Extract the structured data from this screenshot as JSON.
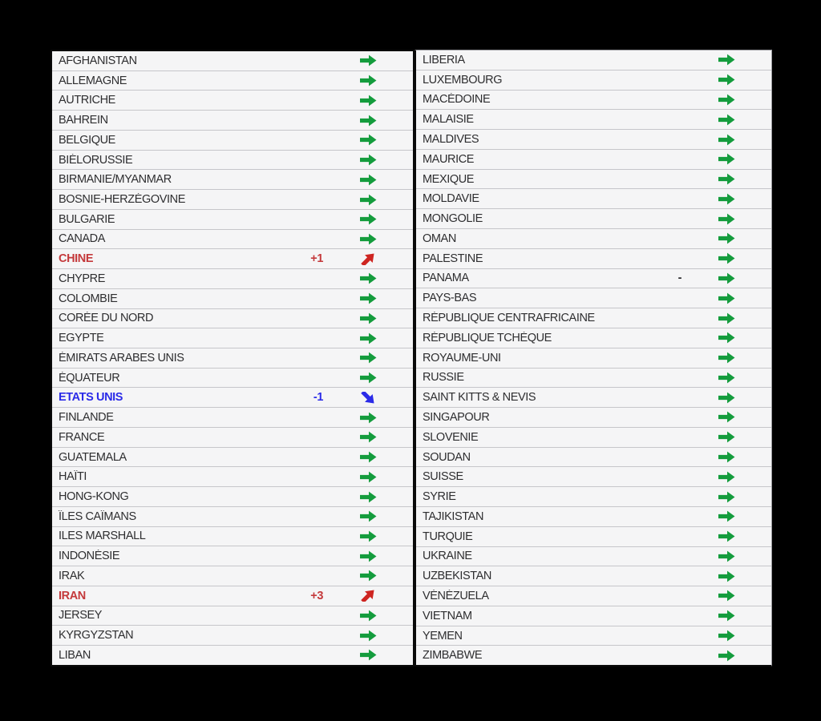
{
  "chart_data": {
    "type": "table",
    "description": "Two-column country list with trend arrows",
    "trend_values": [
      "stable",
      "up",
      "down"
    ],
    "columns": [
      {
        "rows": [
          {
            "country": "AFGHANISTAN",
            "delta": "",
            "trend": "stable"
          },
          {
            "country": "ALLEMAGNE",
            "delta": "",
            "trend": "stable"
          },
          {
            "country": "AUTRICHE",
            "delta": "",
            "trend": "stable"
          },
          {
            "country": "BAHREIN",
            "delta": "",
            "trend": "stable"
          },
          {
            "country": "BELGIQUE",
            "delta": "",
            "trend": "stable"
          },
          {
            "country": "BIÉLORUSSIE",
            "delta": "",
            "trend": "stable"
          },
          {
            "country": "BIRMANIE/MYANMAR",
            "delta": "",
            "trend": "stable"
          },
          {
            "country": "BOSNIE-HERZÉGOVINE",
            "delta": "",
            "trend": "stable"
          },
          {
            "country": "BULGARIE",
            "delta": "",
            "trend": "stable"
          },
          {
            "country": "CANADA",
            "delta": "",
            "trend": "stable"
          },
          {
            "country": "CHINE",
            "delta": "+1",
            "trend": "up"
          },
          {
            "country": "CHYPRE",
            "delta": "",
            "trend": "stable"
          },
          {
            "country": "COLOMBIE",
            "delta": "",
            "trend": "stable"
          },
          {
            "country": "CORÉE DU NORD",
            "delta": "",
            "trend": "stable"
          },
          {
            "country": "EGYPTE",
            "delta": "",
            "trend": "stable"
          },
          {
            "country": "ÉMIRATS ARABES UNIS",
            "delta": "",
            "trend": "stable"
          },
          {
            "country": "ÉQUATEUR",
            "delta": "",
            "trend": "stable"
          },
          {
            "country": "ETATS UNIS",
            "delta": "-1",
            "trend": "down"
          },
          {
            "country": "FINLANDE",
            "delta": "",
            "trend": "stable"
          },
          {
            "country": "FRANCE",
            "delta": "",
            "trend": "stable"
          },
          {
            "country": "GUATEMALA",
            "delta": "",
            "trend": "stable"
          },
          {
            "country": "HAÏTI",
            "delta": "",
            "trend": "stable"
          },
          {
            "country": "HONG-KONG",
            "delta": "",
            "trend": "stable"
          },
          {
            "country": "ÎLES CAÏMANS",
            "delta": "",
            "trend": "stable"
          },
          {
            "country": "ILES MARSHALL",
            "delta": "",
            "trend": "stable"
          },
          {
            "country": "INDONÉSIE",
            "delta": "",
            "trend": "stable"
          },
          {
            "country": "IRAK",
            "delta": "",
            "trend": "stable"
          },
          {
            "country": "IRAN",
            "delta": "+3",
            "trend": "up"
          },
          {
            "country": "JERSEY",
            "delta": "",
            "trend": "stable"
          },
          {
            "country": "KYRGYZSTAN",
            "delta": "",
            "trend": "stable"
          },
          {
            "country": "LIBAN",
            "delta": "",
            "trend": "stable"
          }
        ]
      },
      {
        "rows": [
          {
            "country": "LIBERIA",
            "delta": "",
            "trend": "stable"
          },
          {
            "country": "LUXEMBOURG",
            "delta": "",
            "trend": "stable"
          },
          {
            "country": "MACÉDOINE",
            "delta": "",
            "trend": "stable"
          },
          {
            "country": "MALAISIE",
            "delta": "",
            "trend": "stable"
          },
          {
            "country": "MALDIVES",
            "delta": "",
            "trend": "stable"
          },
          {
            "country": "MAURICE",
            "delta": "",
            "trend": "stable"
          },
          {
            "country": "MEXIQUE",
            "delta": "",
            "trend": "stable"
          },
          {
            "country": "MOLDAVIE",
            "delta": "",
            "trend": "stable"
          },
          {
            "country": "MONGOLIE",
            "delta": "",
            "trend": "stable"
          },
          {
            "country": "OMAN",
            "delta": "",
            "trend": "stable"
          },
          {
            "country": "PALESTINE",
            "delta": "",
            "trend": "stable"
          },
          {
            "country": "PANAMA",
            "delta": "-",
            "trend": "stable"
          },
          {
            "country": "PAYS-BAS",
            "delta": "",
            "trend": "stable"
          },
          {
            "country": "RÉPUBLIQUE CENTRAFRICAINE",
            "delta": "",
            "trend": "stable"
          },
          {
            "country": "RÉPUBLIQUE TCHÈQUE",
            "delta": "",
            "trend": "stable"
          },
          {
            "country": "ROYAUME-UNI",
            "delta": "",
            "trend": "stable"
          },
          {
            "country": "RUSSIE",
            "delta": "",
            "trend": "stable"
          },
          {
            "country": "SAINT KITTS & NEVIS",
            "delta": "",
            "trend": "stable"
          },
          {
            "country": "SINGAPOUR",
            "delta": "",
            "trend": "stable"
          },
          {
            "country": "SLOVENIE",
            "delta": "",
            "trend": "stable"
          },
          {
            "country": "SOUDAN",
            "delta": "",
            "trend": "stable"
          },
          {
            "country": "SUISSE",
            "delta": "",
            "trend": "stable"
          },
          {
            "country": "SYRIE",
            "delta": "",
            "trend": "stable"
          },
          {
            "country": "TAJIKISTAN",
            "delta": "",
            "trend": "stable"
          },
          {
            "country": "TURQUIE",
            "delta": "",
            "trend": "stable"
          },
          {
            "country": "UKRAINE",
            "delta": "",
            "trend": "stable"
          },
          {
            "country": "UZBEKISTAN",
            "delta": "",
            "trend": "stable"
          },
          {
            "country": "VÉNÉZUELA",
            "delta": "",
            "trend": "stable"
          },
          {
            "country": "VIETNAM",
            "delta": "",
            "trend": "stable"
          },
          {
            "country": "YEMEN",
            "delta": "",
            "trend": "stable"
          },
          {
            "country": "ZIMBABWE",
            "delta": "",
            "trend": "stable"
          }
        ]
      }
    ]
  },
  "colors": {
    "stable_arrow": "#149C3D",
    "up_arrow": "#CE2521",
    "down_arrow": "#2B2BE8",
    "up_text": "#C4393B",
    "down_text": "#2B2BE8",
    "default_text": "#2E2E30",
    "row_background": "#F5F5F6",
    "row_divider": "#C6C6CA",
    "outer_border": "#0A0A0A",
    "page_background": "#000000"
  },
  "icons": {
    "stable": "right-arrow-icon",
    "up": "up-right-arrow-icon",
    "down": "down-right-arrow-icon"
  }
}
